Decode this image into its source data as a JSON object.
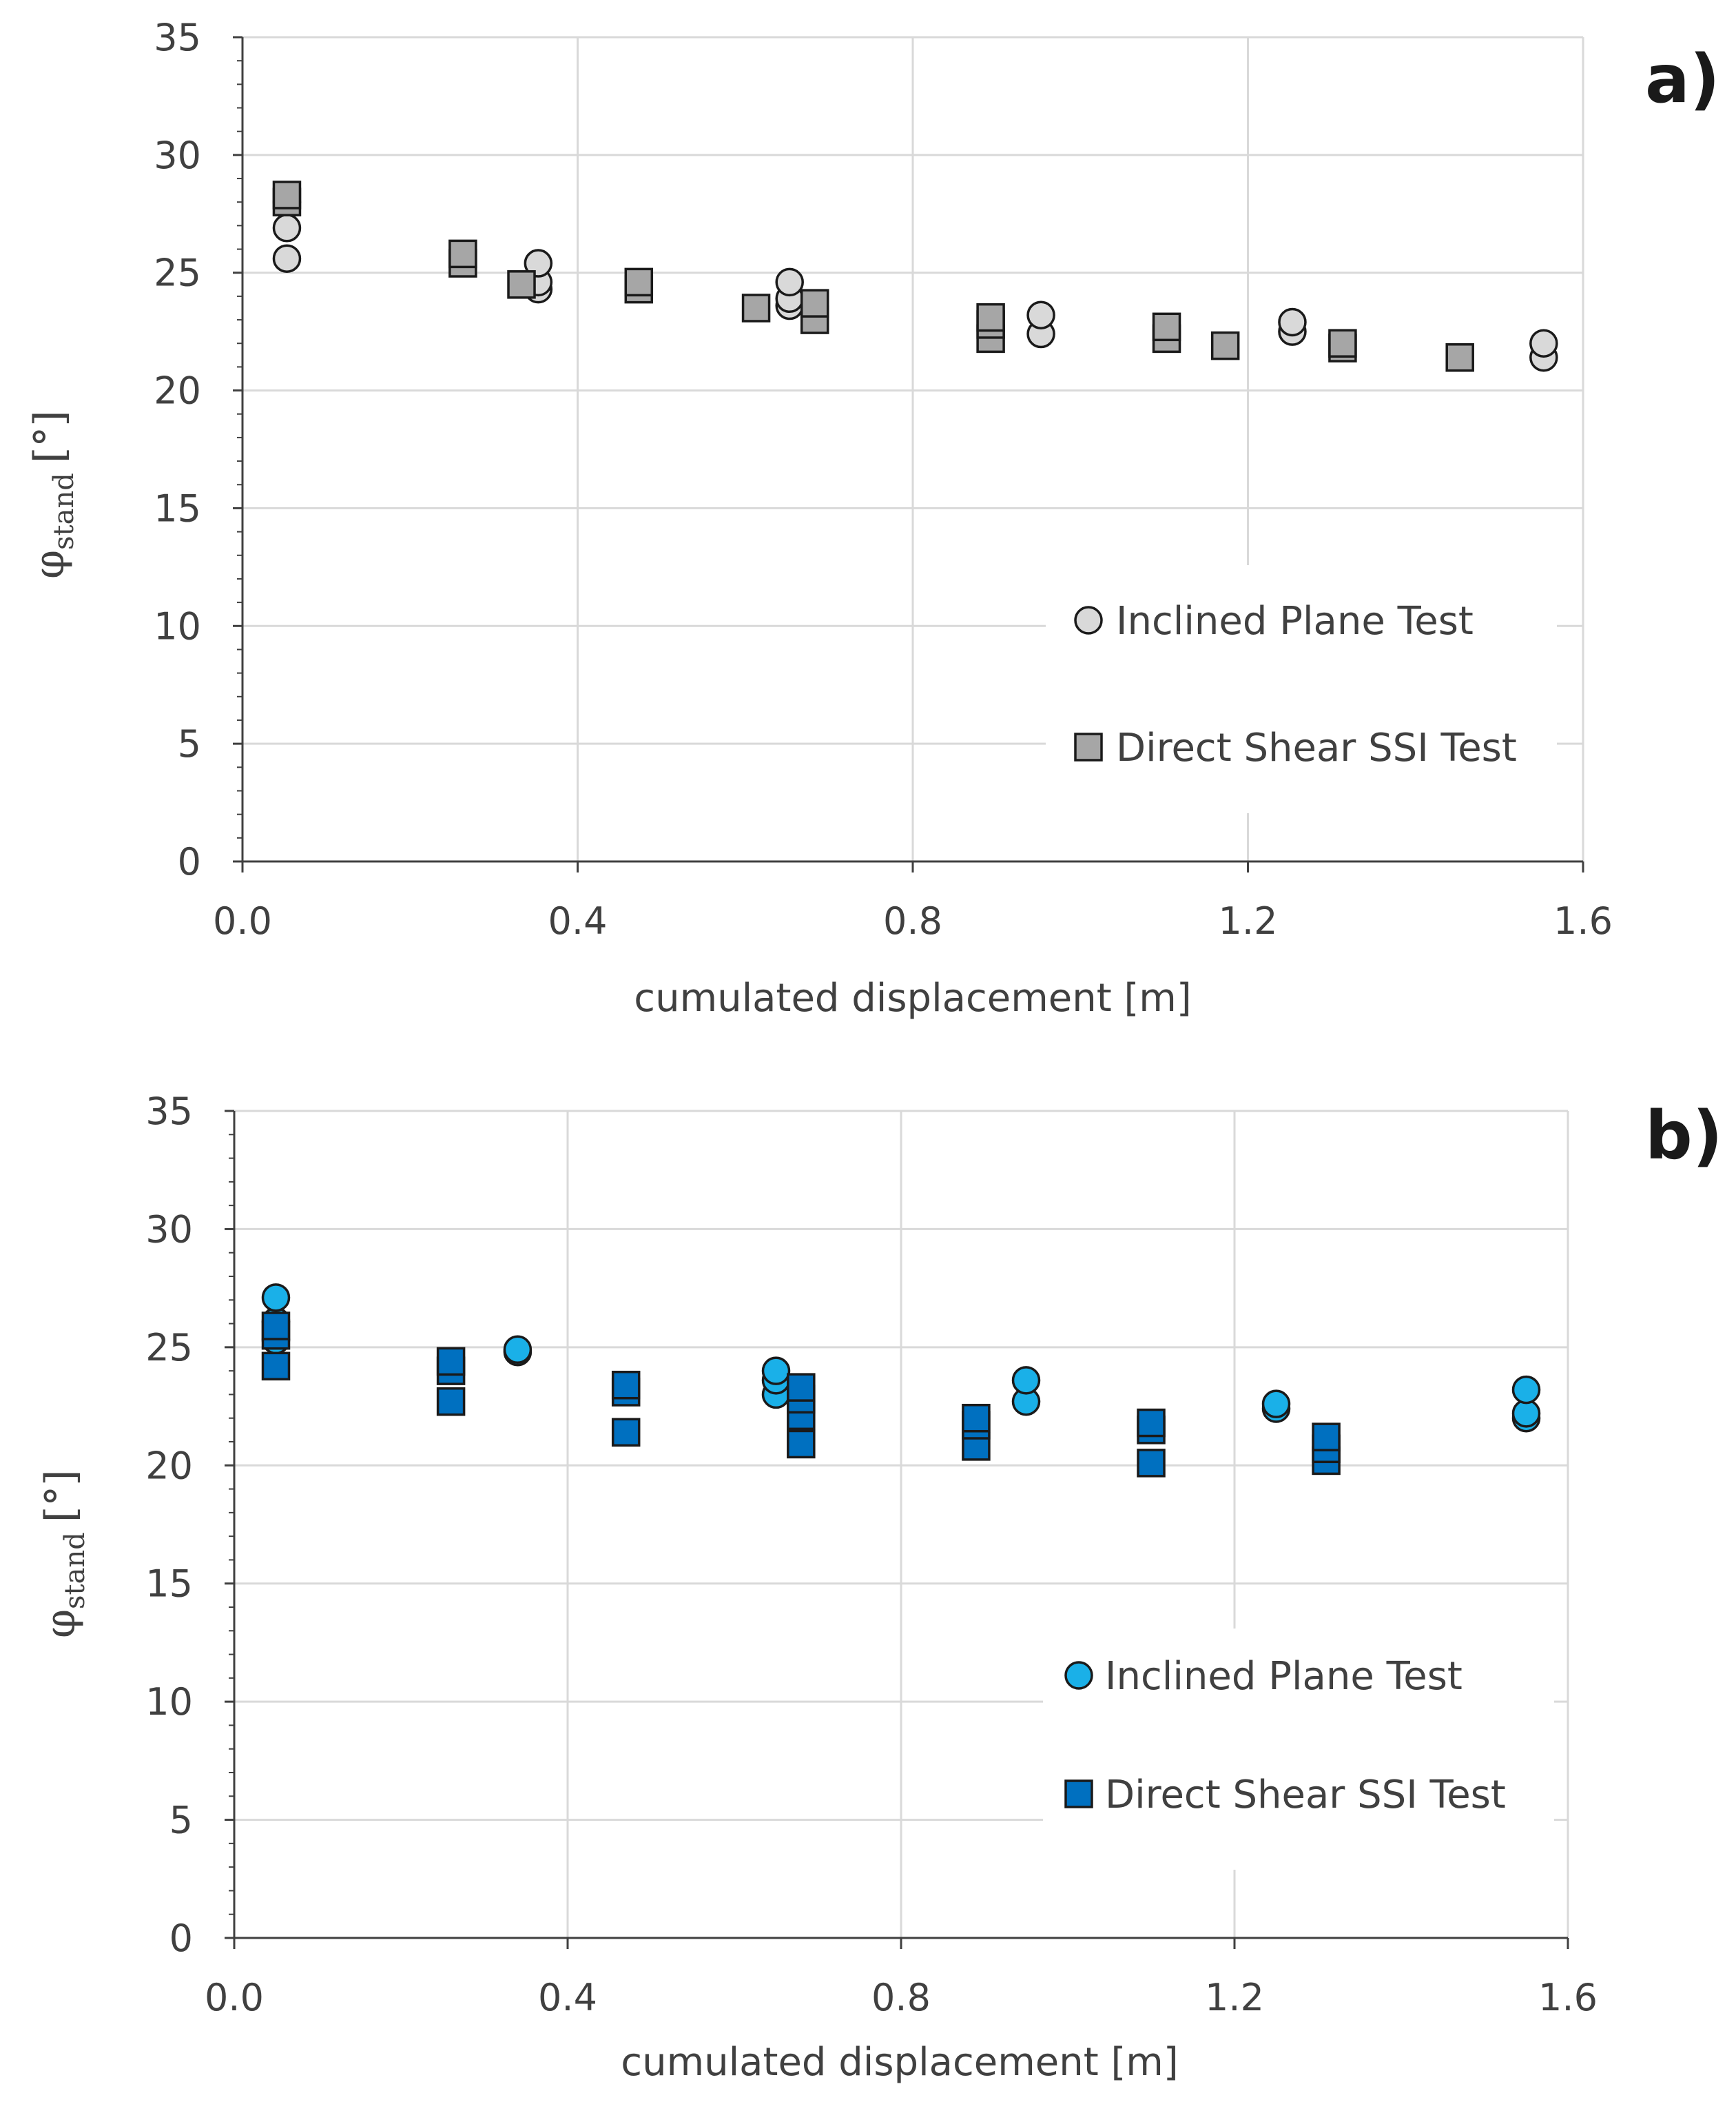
{
  "chart_data": [
    {
      "panel": "a)",
      "type": "scatter",
      "xlabel": "cumulated displacement [m]",
      "ylabel": {
        "symbol": "φ",
        "subscript": "stand",
        "unit": "[°]"
      },
      "xlim": [
        0.0,
        1.6
      ],
      "ylim": [
        0,
        35
      ],
      "xticks": [
        "0.0",
        "0.4",
        "0.8",
        "1.2",
        "1.6"
      ],
      "yticks": [
        "0",
        "5",
        "10",
        "15",
        "20",
        "25",
        "30",
        "35"
      ],
      "grid": true,
      "legend_position": "bottom-right",
      "colors": {
        "circle_fill": "#d9d9d9",
        "square_fill": "#a6a6a6",
        "edge": "#1a1a1a"
      },
      "series": [
        {
          "name": "Inclined Plane Test",
          "marker": "circle",
          "x": [
            0.053,
            0.053,
            0.053,
            0.353,
            0.353,
            0.353,
            0.653,
            0.653,
            0.653,
            0.953,
            0.953,
            1.253,
            1.253,
            1.553,
            1.553
          ],
          "y": [
            25.6,
            26.9,
            28.0,
            24.3,
            24.6,
            25.4,
            23.6,
            23.9,
            24.6,
            22.4,
            23.2,
            22.5,
            22.9,
            21.4,
            22.0
          ]
        },
        {
          "name": "Direct Shear SSI Test",
          "marker": "square",
          "x": [
            0.053,
            0.053,
            0.263,
            0.263,
            0.333,
            0.473,
            0.473,
            0.613,
            0.683,
            0.683,
            0.893,
            0.893,
            0.893,
            1.103,
            1.103,
            1.173,
            1.313,
            1.313,
            1.453
          ],
          "y": [
            28.0,
            28.3,
            25.4,
            25.8,
            24.5,
            24.3,
            24.6,
            23.5,
            23.0,
            23.7,
            22.2,
            22.8,
            23.1,
            22.2,
            22.7,
            21.9,
            21.8,
            22.0,
            21.4
          ]
        }
      ]
    },
    {
      "panel": "b)",
      "type": "scatter",
      "xlabel": "cumulated displacement [m]",
      "ylabel": {
        "symbol": "φ",
        "subscript": "stand",
        "unit": "[°]"
      },
      "xlim": [
        0.0,
        1.6
      ],
      "ylim": [
        0,
        35
      ],
      "xticks": [
        "0.0",
        "0.4",
        "0.8",
        "1.2",
        "1.6"
      ],
      "yticks": [
        "0",
        "5",
        "10",
        "15",
        "20",
        "25",
        "30",
        "35"
      ],
      "grid": true,
      "legend_position": "bottom-right",
      "colors": {
        "circle_fill": "#1ab0e8",
        "square_fill": "#0070c0",
        "edge": "#1a1a1a"
      },
      "series": [
        {
          "name": "Inclined Plane Test",
          "marker": "circle",
          "x": [
            0.05,
            0.05,
            0.05,
            0.34,
            0.34,
            0.65,
            0.65,
            0.65,
            0.95,
            0.95,
            1.25,
            1.25,
            1.55,
            1.55,
            1.55
          ],
          "y": [
            25.3,
            26.1,
            27.1,
            24.8,
            24.9,
            23.0,
            23.6,
            24.0,
            22.7,
            23.6,
            22.4,
            22.6,
            22.0,
            22.2,
            23.2
          ]
        },
        {
          "name": "Direct Shear SSI Test",
          "marker": "square",
          "x": [
            0.05,
            0.05,
            0.05,
            0.26,
            0.26,
            0.26,
            0.47,
            0.47,
            0.47,
            0.68,
            0.68,
            0.68,
            0.68,
            0.89,
            0.89,
            0.89,
            1.1,
            1.1,
            1.1,
            1.31,
            1.31,
            1.31
          ],
          "y": [
            24.2,
            25.5,
            25.9,
            22.7,
            24.0,
            24.4,
            21.4,
            23.1,
            23.4,
            20.9,
            22.1,
            22.8,
            23.3,
            20.8,
            21.7,
            22.0,
            20.1,
            21.5,
            21.8,
            20.2,
            20.7,
            21.2
          ]
        }
      ]
    }
  ]
}
